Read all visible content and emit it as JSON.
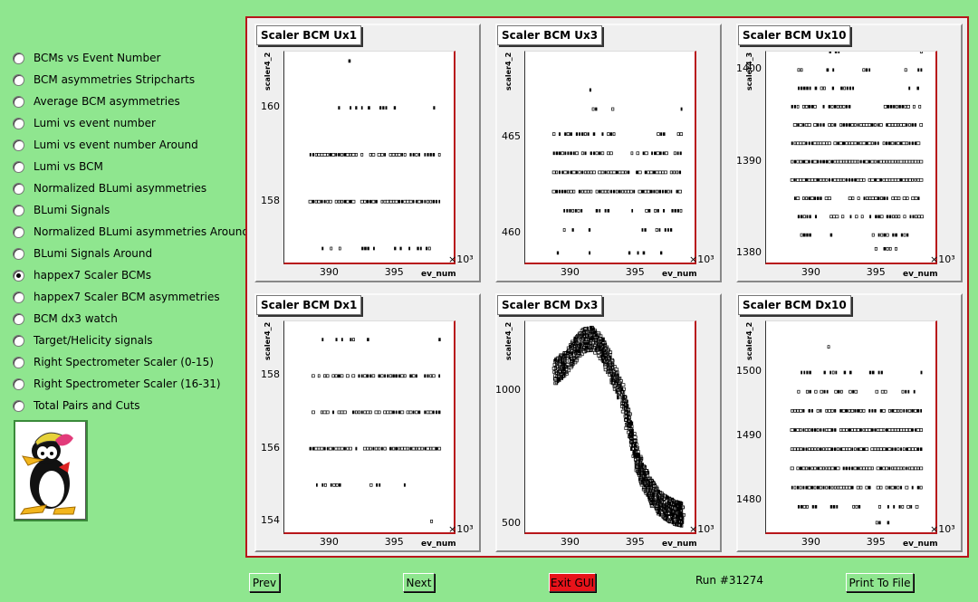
{
  "menu": {
    "items": [
      {
        "label": "BCMs vs Event Number",
        "checked": false
      },
      {
        "label": "BCM asymmetries Stripcharts",
        "checked": false
      },
      {
        "label": "Average BCM asymmetries",
        "checked": false
      },
      {
        "label": "Lumi vs event number",
        "checked": false
      },
      {
        "label": "Lumi vs event number Around",
        "checked": false
      },
      {
        "label": "Lumi vs BCM",
        "checked": false
      },
      {
        "label": "Normalized BLumi asymmetries",
        "checked": false
      },
      {
        "label": "BLumi Signals",
        "checked": false
      },
      {
        "label": "Normalized BLumi asymmetries Around",
        "checked": false
      },
      {
        "label": "BLumi Signals Around",
        "checked": false
      },
      {
        "label": "happex7 Scaler BCMs",
        "checked": true
      },
      {
        "label": "happex7 Scaler BCM asymmetries",
        "checked": false
      },
      {
        "label": "BCM dx3 watch",
        "checked": false
      },
      {
        "label": "Target/Helicity signals",
        "checked": false
      },
      {
        "label": "Right Spectrometer Scaler (0-15)",
        "checked": false
      },
      {
        "label": "Right Spectrometer Scaler (16-31)",
        "checked": false
      },
      {
        "label": "Total Pairs and Cuts",
        "checked": false
      }
    ]
  },
  "footer": {
    "prev": "Prev",
    "next": "Next",
    "exit": "Exit GUI",
    "run": "Run #31274",
    "print": "Print To File"
  },
  "colors": {
    "background": "#8fe68f",
    "frame_border": "#b8161a",
    "exit_button": "#e8131a"
  },
  "chart_data": [
    {
      "type": "scatter",
      "title": "Scaler BCM Ux1",
      "xlabel": "ev_num",
      "ylabel": "scaler4_2",
      "x_multiplier": "×10³",
      "xlim": [
        386.5,
        399.5
      ],
      "ylim": [
        156.7,
        161.2
      ],
      "xticks": [
        390,
        395
      ],
      "yticks": [
        158,
        160
      ],
      "bands": [
        {
          "y": 157.0,
          "xs": [
            [
              389,
              391
            ],
            [
              392.5,
              394
            ],
            [
              395,
              397.7
            ]
          ],
          "density": 0.4
        },
        {
          "y": 158.0,
          "xs": [
            [
              388.5,
              398.5
            ]
          ],
          "density": 0.9
        },
        {
          "y": 159.0,
          "xs": [
            [
              388.5,
              398.5
            ]
          ],
          "density": 0.8
        },
        {
          "y": 160.0,
          "xs": [
            [
              389.1,
              389.2
            ],
            [
              390.7,
              392.5
            ],
            [
              393,
              395
            ],
            [
              398,
              398.2
            ]
          ],
          "density": 0.4
        },
        {
          "y": 161.0,
          "xs": [
            [
              391.5,
              391.8
            ]
          ],
          "density": 0.4
        }
      ]
    },
    {
      "type": "scatter",
      "title": "Scaler BCM Ux3",
      "xlabel": "ev_num",
      "ylabel": "scaler4_2",
      "x_multiplier": "×10³",
      "xlim": [
        386.5,
        399.5
      ],
      "ylim": [
        458.5,
        469.5
      ],
      "xticks": [
        390,
        395
      ],
      "yticks": [
        460,
        465
      ],
      "bands": [
        {
          "y": 459.0,
          "xs": [
            [
              389,
              390
            ],
            [
              391,
              391.5
            ],
            [
              394.5,
              396
            ],
            [
              396.5,
              397
            ]
          ],
          "density": 0.3
        },
        {
          "y": 460.2,
          "xs": [
            [
              389.5,
              390.3
            ],
            [
              391,
              391.5
            ],
            [
              392,
              393
            ],
            [
              395.5,
              398.5
            ]
          ],
          "density": 0.5
        },
        {
          "y": 461.2,
          "xs": [
            [
              389.5,
              391
            ],
            [
              392,
              393.5
            ],
            [
              394.5,
              398.5
            ]
          ],
          "density": 0.6
        },
        {
          "y": 462.2,
          "xs": [
            [
              388.7,
              398.5
            ]
          ],
          "density": 0.8
        },
        {
          "y": 463.2,
          "xs": [
            [
              388.7,
              398.5
            ]
          ],
          "density": 0.9
        },
        {
          "y": 464.2,
          "xs": [
            [
              388.7,
              393.5
            ],
            [
              394.7,
              398.5
            ]
          ],
          "density": 0.8
        },
        {
          "y": 465.2,
          "xs": [
            [
              388.7,
              393.5
            ],
            [
              396.5,
              398.5
            ]
          ],
          "density": 0.6
        },
        {
          "y": 466.5,
          "xs": [
            [
              389,
              389.2
            ],
            [
              390,
              390.3
            ],
            [
              391.5,
              392
            ],
            [
              393,
              393.5
            ],
            [
              398.5,
              398.6
            ]
          ],
          "density": 0.5
        },
        {
          "y": 467.5,
          "xs": [
            [
              391.5,
              392
            ],
            [
              398.5,
              398.6
            ]
          ],
          "density": 0.4
        }
      ]
    },
    {
      "type": "scatter",
      "title": "Scaler BCM Ux10",
      "xlabel": "ev_num",
      "ylabel": "scaler4_3",
      "x_multiplier": "×10³",
      "xlim": [
        386.5,
        399.5
      ],
      "ylim": [
        1379,
        1402
      ],
      "xticks": [
        390,
        395
      ],
      "yticks": [
        1380,
        1390,
        1400
      ],
      "bands": [
        {
          "y": 1380.5,
          "xs": [
            [
              394.5,
              396.5
            ]
          ],
          "density": 0.5
        },
        {
          "y": 1382,
          "xs": [
            [
              389,
              390
            ],
            [
              391.5,
              392
            ],
            [
              394.5,
              398
            ]
          ],
          "density": 0.5
        },
        {
          "y": 1384,
          "xs": [
            [
              389,
              390.5
            ],
            [
              391.5,
              392.5
            ],
            [
              393,
              394
            ],
            [
              394.5,
              398.5
            ]
          ],
          "density": 0.7
        },
        {
          "y": 1386,
          "xs": [
            [
              388.5,
              391.5
            ],
            [
              392.5,
              398.5
            ]
          ],
          "density": 0.85
        },
        {
          "y": 1388,
          "xs": [
            [
              388.5,
              398.5
            ]
          ],
          "density": 0.95
        },
        {
          "y": 1390,
          "xs": [
            [
              388.5,
              398.5
            ]
          ],
          "density": 0.95
        },
        {
          "y": 1392,
          "xs": [
            [
              388.5,
              398.5
            ]
          ],
          "density": 0.95
        },
        {
          "y": 1394,
          "xs": [
            [
              388.5,
              398.5
            ]
          ],
          "density": 0.85
        },
        {
          "y": 1396,
          "xs": [
            [
              388.5,
              393
            ],
            [
              395,
              398.5
            ]
          ],
          "density": 0.65
        },
        {
          "y": 1398,
          "xs": [
            [
              389,
              393.5
            ],
            [
              395.5,
              396
            ],
            [
              397.5,
              398.5
            ]
          ],
          "density": 0.5
        },
        {
          "y": 1400,
          "xs": [
            [
              389,
              389.5
            ],
            [
              391,
              392.5
            ],
            [
              394,
              394.5
            ],
            [
              397,
              397.5
            ],
            [
              398.2,
              398.5
            ]
          ],
          "density": 0.5
        },
        {
          "y": 1402,
          "xs": [
            [
              391.2,
              392.2
            ],
            [
              398.2,
              398.5
            ]
          ],
          "density": 0.5
        }
      ]
    },
    {
      "type": "scatter",
      "title": "Scaler BCM Dx1",
      "xlabel": "ev_num",
      "ylabel": "scaler4_2",
      "x_multiplier": "×10³",
      "xlim": [
        386.5,
        399.5
      ],
      "ylim": [
        153.7,
        159.5
      ],
      "xticks": [
        390,
        395
      ],
      "yticks": [
        154,
        156,
        158
      ],
      "bands": [
        {
          "y": 154.0,
          "xs": [
            [
              397.8,
              398
            ]
          ],
          "density": 0.4
        },
        {
          "y": 155.0,
          "xs": [
            [
              389,
              391
            ],
            [
              392.5,
              394.5
            ],
            [
              395.3,
              398
            ]
          ],
          "density": 0.5
        },
        {
          "y": 156.0,
          "xs": [
            [
              388.5,
              398.5
            ]
          ],
          "density": 0.9
        },
        {
          "y": 157.0,
          "xs": [
            [
              388.5,
              398.5
            ]
          ],
          "density": 0.8
        },
        {
          "y": 158.0,
          "xs": [
            [
              388.5,
              398.5
            ]
          ],
          "density": 0.7
        },
        {
          "y": 159.0,
          "xs": [
            [
              389,
              389.8
            ],
            [
              390.5,
              393
            ],
            [
              398.2,
              398.5
            ]
          ],
          "density": 0.4
        }
      ]
    },
    {
      "type": "scatter",
      "title": "Scaler BCM Dx3",
      "xlabel": "ev_num",
      "ylabel": "scaler4_2",
      "x_multiplier": "×10³",
      "xlim": [
        386.5,
        399.5
      ],
      "ylim": [
        470,
        1260
      ],
      "xticks": [
        390,
        395
      ],
      "yticks": [
        500,
        1000
      ],
      "trend": [
        [
          388.8,
          1070
        ],
        [
          389.5,
          1100
        ],
        [
          390.3,
          1150
        ],
        [
          391,
          1190
        ],
        [
          391.7,
          1195
        ],
        [
          392.5,
          1150
        ],
        [
          393.2,
          1070
        ],
        [
          394,
          980
        ],
        [
          394.6,
          850
        ],
        [
          395.1,
          740
        ],
        [
          395.6,
          680
        ],
        [
          396.2,
          620
        ],
        [
          396.8,
          580
        ],
        [
          397.5,
          555
        ],
        [
          398.2,
          540
        ],
        [
          398.6,
          535
        ]
      ]
    },
    {
      "type": "scatter",
      "title": "Scaler BCM Dx10",
      "xlabel": "ev_num",
      "ylabel": "scaler4_2",
      "x_multiplier": "×10³",
      "xlim": [
        386.5,
        399.5
      ],
      "ylim": [
        1475,
        1508
      ],
      "xticks": [
        390,
        395
      ],
      "yticks": [
        1480,
        1490,
        1500
      ],
      "bands": [
        {
          "y": 1476.5,
          "xs": [
            [
              395,
              397
            ]
          ],
          "density": 0.5
        },
        {
          "y": 1479,
          "xs": [
            [
              389,
              390.5
            ],
            [
              391.5,
              392.5
            ],
            [
              393,
              394
            ],
            [
              395,
              398.5
            ]
          ],
          "density": 0.6
        },
        {
          "y": 1482,
          "xs": [
            [
              388.5,
              398.5
            ]
          ],
          "density": 0.8
        },
        {
          "y": 1485,
          "xs": [
            [
              388.5,
              398.5
            ]
          ],
          "density": 0.95
        },
        {
          "y": 1488,
          "xs": [
            [
              388.5,
              398.5
            ]
          ],
          "density": 0.95
        },
        {
          "y": 1491,
          "xs": [
            [
              388.5,
              398.5
            ]
          ],
          "density": 0.9
        },
        {
          "y": 1494,
          "xs": [
            [
              388.5,
              398.5
            ]
          ],
          "density": 0.8
        },
        {
          "y": 1497,
          "xs": [
            [
              389,
              393.5
            ],
            [
              395,
              396
            ],
            [
              397,
              398.5
            ]
          ],
          "density": 0.6
        },
        {
          "y": 1500,
          "xs": [
            [
              389,
              390
            ],
            [
              391,
              393
            ],
            [
              394.5,
              395.5
            ],
            [
              398.2,
              398.5
            ]
          ],
          "density": 0.4
        },
        {
          "y": 1504,
          "xs": [
            [
              391.3,
              392
            ],
            [
              398.3,
              398.5
            ]
          ],
          "density": 0.4
        }
      ]
    }
  ]
}
